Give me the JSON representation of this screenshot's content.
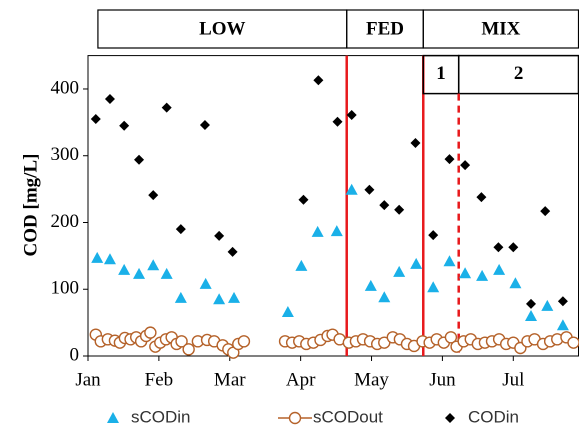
{
  "chart_data": {
    "type": "scatter",
    "y_label": "COD [mg/L]",
    "xlim": [
      0,
      6.92
    ],
    "xticks": [
      {
        "value": 0,
        "label": "Jan"
      },
      {
        "value": 1,
        "label": "Feb"
      },
      {
        "value": 2,
        "label": "Mar"
      },
      {
        "value": 3,
        "label": "Apr"
      },
      {
        "value": 4,
        "label": "May"
      },
      {
        "value": 5,
        "label": "Jun"
      },
      {
        "value": 6,
        "label": "Jul"
      }
    ],
    "ylim": [
      0,
      450
    ],
    "yticks": [
      0,
      100,
      200,
      300,
      400
    ],
    "regions": [
      {
        "label": "LOW",
        "start": 0.14,
        "end": 3.65
      },
      {
        "label": "FED",
        "start": 3.65,
        "end": 4.73
      },
      {
        "label": "MIX",
        "start": 4.73,
        "end": 6.92
      }
    ],
    "subregions": [
      {
        "label": "1",
        "start": 4.73,
        "end": 5.23
      },
      {
        "label": "2",
        "start": 5.23,
        "end": 6.92
      }
    ],
    "boundary_color": "#e8191c",
    "series": [
      {
        "name": "sCODin",
        "marker": "triangle",
        "color": "#1ab0e8",
        "x": [
          0.13,
          0.31,
          0.51,
          0.72,
          0.92,
          1.11,
          1.31,
          1.66,
          1.85,
          2.06,
          2.82,
          3.01,
          3.24,
          3.51,
          3.72,
          3.99,
          4.18,
          4.39,
          4.63,
          4.87,
          5.1,
          5.32,
          5.56,
          5.8,
          6.03,
          6.25,
          6.48,
          6.7
        ],
        "values": [
          147,
          145,
          129,
          123,
          136,
          123,
          87,
          108,
          85,
          87,
          66,
          135,
          186,
          187,
          249,
          105,
          88,
          126,
          138,
          103,
          142,
          124,
          120,
          129,
          109,
          60,
          75,
          46
        ]
      },
      {
        "name": "sCODout",
        "marker": "circle",
        "color": "#b5622a",
        "x": [
          0.11,
          0.18,
          0.28,
          0.38,
          0.45,
          0.52,
          0.6,
          0.68,
          0.75,
          0.82,
          0.88,
          0.95,
          1.02,
          1.1,
          1.18,
          1.25,
          1.32,
          1.42,
          1.55,
          1.68,
          1.78,
          1.9,
          1.98,
          2.05,
          2.12,
          2.2,
          2.78,
          2.88,
          2.98,
          3.08,
          3.18,
          3.28,
          3.38,
          3.45,
          3.55,
          3.68,
          3.78,
          3.88,
          3.98,
          4.08,
          4.18,
          4.3,
          4.4,
          4.5,
          4.6,
          4.72,
          4.82,
          4.92,
          5.02,
          5.12,
          5.2,
          5.3,
          5.4,
          5.5,
          5.6,
          5.7,
          5.8,
          5.9,
          6.0,
          6.1,
          6.2,
          6.3,
          6.42,
          6.52,
          6.62,
          6.75,
          6.85
        ],
        "values": [
          32,
          22,
          25,
          23,
          20,
          27,
          25,
          28,
          22,
          30,
          35,
          14,
          20,
          25,
          28,
          18,
          22,
          10,
          22,
          24,
          22,
          16,
          10,
          5,
          18,
          22,
          22,
          20,
          22,
          18,
          20,
          24,
          30,
          32,
          25,
          20,
          22,
          25,
          22,
          18,
          20,
          28,
          25,
          18,
          15,
          22,
          20,
          25,
          20,
          28,
          14,
          22,
          25,
          18,
          20,
          22,
          25,
          18,
          20,
          12,
          22,
          25,
          18,
          22,
          25,
          28,
          20
        ]
      },
      {
        "name": "CODin",
        "marker": "diamond",
        "color": "#000000",
        "x": [
          0.11,
          0.31,
          0.51,
          0.72,
          0.92,
          1.11,
          1.31,
          1.65,
          1.85,
          2.04,
          3.04,
          3.25,
          3.52,
          3.72,
          3.97,
          4.18,
          4.39,
          4.62,
          4.87,
          5.1,
          5.32,
          5.55,
          5.79,
          6.0,
          6.25,
          6.45,
          6.7
        ],
        "values": [
          355,
          385,
          345,
          294,
          241,
          372,
          190,
          346,
          180,
          156,
          234,
          413,
          351,
          361,
          249,
          226,
          219,
          319,
          181,
          295,
          286,
          238,
          163,
          163,
          78,
          217,
          82
        ]
      }
    ]
  }
}
